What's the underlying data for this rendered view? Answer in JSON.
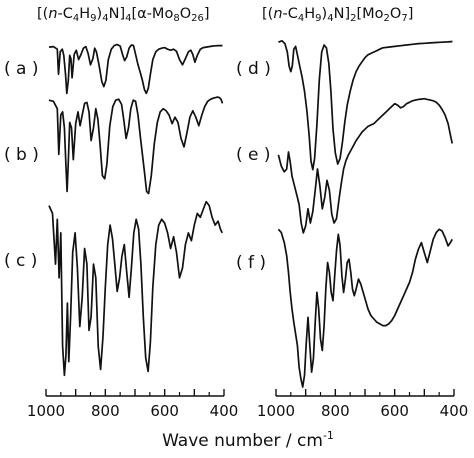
{
  "chart_data": [
    {
      "type": "line",
      "title_parts": [
        "[(",
        "n",
        "-C",
        "4",
        "H",
        "9",
        ")",
        "4",
        "N]",
        "4",
        "[α-Mo",
        "8",
        "O",
        "26",
        "]"
      ],
      "xlabel": "Wave number / cm",
      "xlabel_exp": "-1",
      "xlim": [
        1000,
        400
      ],
      "xticks": [
        "1000",
        "900",
        "800",
        "700",
        "600",
        "500",
        "400"
      ],
      "series": [
        {
          "name": "( a )",
          "x": [
            990,
            975,
            962,
            958,
            952,
            945,
            940,
            934,
            930,
            925,
            920,
            916,
            912,
            905,
            898,
            890,
            882,
            874,
            866,
            858,
            850,
            842,
            836,
            830,
            822,
            812,
            805,
            798,
            790,
            780,
            770,
            760,
            750,
            742,
            735,
            728,
            720,
            712,
            705,
            698,
            690,
            682,
            675,
            668,
            662,
            655,
            648,
            640,
            630,
            620,
            610,
            600,
            590,
            580,
            570,
            560,
            550,
            540,
            530,
            520,
            512,
            505,
            498,
            490,
            480,
            470,
            460,
            450,
            440,
            430,
            420,
            410,
            405
          ],
          "y": [
            0.94,
            0.95,
            0.9,
            0.42,
            0.85,
            0.9,
            0.78,
            0.4,
            0.05,
            0.3,
            0.78,
            0.72,
            0.35,
            0.8,
            0.88,
            0.7,
            0.8,
            0.92,
            0.95,
            0.82,
            0.6,
            0.72,
            0.92,
            0.85,
            0.62,
            0.28,
            0.18,
            0.3,
            0.7,
            0.9,
            0.97,
            0.99,
            0.96,
            0.8,
            0.68,
            0.75,
            0.92,
            0.98,
            0.97,
            0.8,
            0.6,
            0.45,
            0.3,
            0.12,
            0.05,
            0.15,
            0.42,
            0.7,
            0.85,
            0.9,
            0.92,
            0.93,
            0.9,
            0.88,
            0.9,
            0.86,
            0.7,
            0.6,
            0.72,
            0.85,
            0.88,
            0.8,
            0.65,
            0.78,
            0.9,
            0.93,
            0.94,
            0.95,
            0.96,
            0.965,
            0.97,
            0.97,
            0.97
          ]
        },
        {
          "name": "( b )",
          "x": [
            990,
            975,
            962,
            957,
            950,
            944,
            938,
            933,
            929,
            925,
            920,
            914,
            908,
            900,
            892,
            885,
            878,
            870,
            862,
            855,
            848,
            840,
            832,
            825,
            818,
            810,
            802,
            795,
            785,
            775,
            765,
            755,
            745,
            738,
            730,
            722,
            714,
            706,
            698,
            690,
            682,
            675,
            668,
            661,
            654,
            645,
            635,
            625,
            615,
            605,
            595,
            585,
            575,
            565,
            555,
            545,
            535,
            525,
            515,
            505,
            495,
            485,
            475,
            465,
            455,
            445,
            435,
            428,
            422,
            416,
            410,
            405
          ],
          "y": [
            0.96,
            0.95,
            0.88,
            0.45,
            0.82,
            0.85,
            0.7,
            0.35,
            0.1,
            0.38,
            0.75,
            0.7,
            0.4,
            0.74,
            0.85,
            0.72,
            0.82,
            0.93,
            0.94,
            0.85,
            0.58,
            0.7,
            0.88,
            0.78,
            0.55,
            0.25,
            0.22,
            0.35,
            0.72,
            0.9,
            0.96,
            0.97,
            0.92,
            0.78,
            0.6,
            0.7,
            0.88,
            0.96,
            0.95,
            0.82,
            0.62,
            0.45,
            0.28,
            0.1,
            0.08,
            0.25,
            0.55,
            0.75,
            0.85,
            0.88,
            0.86,
            0.82,
            0.74,
            0.8,
            0.75,
            0.6,
            0.52,
            0.65,
            0.8,
            0.86,
            0.8,
            0.72,
            0.82,
            0.9,
            0.95,
            0.97,
            0.98,
            0.985,
            0.99,
            0.985,
            0.97,
            0.93
          ]
        },
        {
          "name": "( c )",
          "x": [
            990,
            978,
            968,
            962,
            956,
            950,
            944,
            938,
            933,
            928,
            923,
            917,
            910,
            902,
            894,
            886,
            878,
            870,
            862,
            855,
            848,
            840,
            832,
            824,
            816,
            808,
            800,
            792,
            784,
            776,
            768,
            760,
            752,
            744,
            736,
            728,
            720,
            712,
            704,
            696,
            688,
            680,
            672,
            664,
            656,
            648,
            640,
            630,
            620,
            610,
            600,
            590,
            580,
            570,
            560,
            550,
            540,
            530,
            520,
            510,
            500,
            490,
            480,
            470,
            460,
            450,
            440,
            430,
            420,
            412,
            406
          ],
          "y": [
            0.92,
            0.88,
            0.62,
            0.85,
            0.55,
            0.78,
            0.2,
            0.05,
            0.15,
            0.42,
            0.12,
            0.35,
            0.68,
            0.78,
            0.6,
            0.3,
            0.45,
            0.7,
            0.62,
            0.28,
            0.35,
            0.62,
            0.55,
            0.2,
            0.08,
            0.25,
            0.5,
            0.72,
            0.82,
            0.75,
            0.62,
            0.48,
            0.55,
            0.66,
            0.72,
            0.58,
            0.45,
            0.6,
            0.78,
            0.85,
            0.8,
            0.62,
            0.35,
            0.14,
            0.07,
            0.22,
            0.5,
            0.72,
            0.82,
            0.85,
            0.83,
            0.78,
            0.7,
            0.76,
            0.68,
            0.55,
            0.6,
            0.72,
            0.78,
            0.74,
            0.82,
            0.88,
            0.86,
            0.9,
            0.94,
            0.92,
            0.86,
            0.82,
            0.84,
            0.8,
            0.78
          ]
        }
      ]
    },
    {
      "type": "line",
      "title_parts": [
        "[(",
        "n",
        "-C",
        "4",
        "H",
        "9",
        ")",
        "4",
        "N]",
        "2",
        "[Mo",
        "2",
        "O",
        "7",
        "]"
      ],
      "xlabel": "",
      "xlim": [
        1000,
        400
      ],
      "xticks": [
        "1000",
        "900",
        "800",
        "700",
        "600",
        "500",
        "400"
      ],
      "series": [
        {
          "name": "( d )",
          "x": [
            992,
            980,
            970,
            962,
            956,
            950,
            945,
            940,
            934,
            928,
            920,
            912,
            904,
            896,
            888,
            882,
            876,
            870,
            862,
            854,
            846,
            838,
            830,
            822,
            815,
            808,
            800,
            792,
            784,
            776,
            768,
            760,
            750,
            740,
            730,
            720,
            710,
            700,
            690,
            680,
            670,
            660,
            650,
            640,
            620,
            600,
            580,
            560,
            540,
            520,
            500,
            480,
            460,
            440,
            420,
            405
          ],
          "y": [
            0.97,
            0.98,
            0.96,
            0.9,
            0.8,
            0.76,
            0.8,
            0.92,
            0.94,
            0.88,
            0.8,
            0.72,
            0.62,
            0.48,
            0.3,
            0.12,
            0.06,
            0.14,
            0.38,
            0.7,
            0.9,
            0.95,
            0.93,
            0.82,
            0.62,
            0.35,
            0.18,
            0.1,
            0.14,
            0.26,
            0.4,
            0.52,
            0.62,
            0.7,
            0.76,
            0.8,
            0.83,
            0.86,
            0.88,
            0.89,
            0.9,
            0.91,
            0.92,
            0.93,
            0.935,
            0.94,
            0.945,
            0.95,
            0.955,
            0.96,
            0.962,
            0.965,
            0.968,
            0.97,
            0.972,
            0.975
          ]
        },
        {
          "name": "( e )",
          "x": [
            992,
            982,
            972,
            964,
            958,
            952,
            946,
            940,
            934,
            928,
            922,
            915,
            908,
            900,
            892,
            884,
            876,
            868,
            860,
            852,
            844,
            836,
            828,
            820,
            812,
            804,
            796,
            788,
            780,
            772,
            764,
            756,
            748,
            740,
            730,
            720,
            710,
            700,
            690,
            680,
            670,
            660,
            650,
            640,
            630,
            620,
            610,
            600,
            590,
            580,
            570,
            560,
            550,
            540,
            530,
            520,
            510,
            500,
            490,
            480,
            470,
            460,
            450,
            440,
            430,
            420,
            412,
            406
          ],
          "y": [
            0.6,
            0.52,
            0.48,
            0.5,
            0.62,
            0.55,
            0.45,
            0.4,
            0.35,
            0.3,
            0.25,
            0.12,
            0.05,
            0.1,
            0.22,
            0.12,
            0.2,
            0.35,
            0.5,
            0.38,
            0.22,
            0.3,
            0.42,
            0.35,
            0.18,
            0.12,
            0.15,
            0.28,
            0.4,
            0.5,
            0.56,
            0.6,
            0.63,
            0.66,
            0.7,
            0.73,
            0.76,
            0.78,
            0.8,
            0.81,
            0.82,
            0.84,
            0.86,
            0.88,
            0.9,
            0.92,
            0.94,
            0.96,
            0.95,
            0.93,
            0.94,
            0.96,
            0.97,
            0.98,
            0.985,
            0.99,
            0.992,
            0.995,
            0.99,
            0.985,
            0.98,
            0.97,
            0.95,
            0.92,
            0.88,
            0.82,
            0.74,
            0.68
          ]
        },
        {
          "name": "( f )",
          "x": [
            992,
            982,
            972,
            964,
            958,
            952,
            946,
            940,
            934,
            928,
            922,
            916,
            910,
            904,
            898,
            892,
            886,
            880,
            874,
            868,
            862,
            856,
            850,
            844,
            838,
            832,
            826,
            820,
            814,
            808,
            802,
            796,
            790,
            784,
            778,
            772,
            766,
            760,
            754,
            748,
            742,
            736,
            730,
            722,
            714,
            706,
            698,
            690,
            680,
            670,
            660,
            650,
            640,
            630,
            620,
            610,
            600,
            590,
            580,
            570,
            560,
            550,
            540,
            530,
            520,
            510,
            500,
            490,
            480,
            470,
            460,
            450,
            440,
            430,
            420,
            412,
            406
          ],
          "y": [
            0.98,
            0.96,
            0.9,
            0.82,
            0.72,
            0.6,
            0.5,
            0.42,
            0.35,
            0.28,
            0.15,
            0.08,
            0.03,
            0.1,
            0.3,
            0.45,
            0.28,
            0.12,
            0.2,
            0.42,
            0.6,
            0.5,
            0.32,
            0.25,
            0.4,
            0.62,
            0.78,
            0.72,
            0.6,
            0.55,
            0.7,
            0.85,
            0.95,
            0.88,
            0.7,
            0.6,
            0.68,
            0.78,
            0.8,
            0.72,
            0.62,
            0.58,
            0.62,
            0.68,
            0.65,
            0.6,
            0.55,
            0.5,
            0.46,
            0.44,
            0.42,
            0.41,
            0.4,
            0.4,
            0.41,
            0.43,
            0.46,
            0.5,
            0.54,
            0.58,
            0.62,
            0.66,
            0.72,
            0.8,
            0.86,
            0.9,
            0.84,
            0.78,
            0.85,
            0.92,
            0.96,
            0.98,
            0.97,
            0.93,
            0.88,
            0.9,
            0.92
          ]
        }
      ]
    }
  ]
}
